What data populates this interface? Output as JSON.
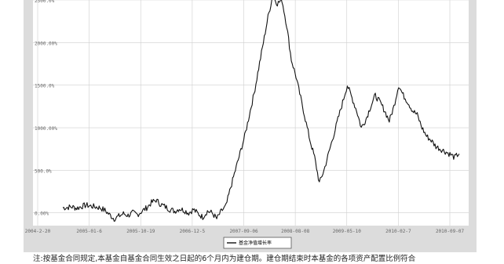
{
  "footnote": "注:按基金合同规定,本基金自基金合同生效之日起的6个月内为建仓期。建仓期结束时本基金的各项资产配置比例符合",
  "chart_data": {
    "type": "line",
    "yticks": [
      "2500.0%",
      "2000.00%",
      "1500.0%",
      "1000.00%",
      "500.0%",
      "0.00%"
    ],
    "xticks": [
      "2004-2-20",
      "2005-01-6",
      "2005-10-19",
      "2006-12-5",
      "2007-09-06",
      "2008-08-08",
      "2009-05-10",
      "2010-02-7",
      "2010-09-07"
    ],
    "ylim": [
      -150,
      2500
    ],
    "legend": "基金净值增长率",
    "colors": {
      "line": "#111111",
      "plot_bg": "#ffffff",
      "frame_bg": "#dcdcdc",
      "grid": "#cfcfcf"
    },
    "series": [
      {
        "values": [
          60,
          65,
          70,
          55,
          75,
          90,
          80,
          70,
          60,
          30,
          -20,
          -70,
          -40,
          -10,
          -30,
          0,
          -20,
          20,
          60,
          120,
          150,
          100,
          70,
          40,
          20,
          50,
          30,
          0,
          40,
          -10,
          -50,
          20,
          0,
          -70,
          20,
          80,
          300,
          500,
          700,
          900,
          1150,
          1400,
          1700,
          2000,
          2300,
          2550,
          2460,
          2500,
          2200,
          1800,
          1600,
          1350,
          1100,
          850,
          650,
          350,
          500,
          700,
          900,
          1100,
          1300,
          1500,
          1350,
          1200,
          1000,
          1100,
          1250,
          1380,
          1300,
          1200,
          1080,
          1250,
          1500,
          1380,
          1300,
          1200,
          1150,
          1000,
          900,
          850,
          780,
          750,
          720,
          690,
          650,
          700
        ]
      }
    ]
  }
}
